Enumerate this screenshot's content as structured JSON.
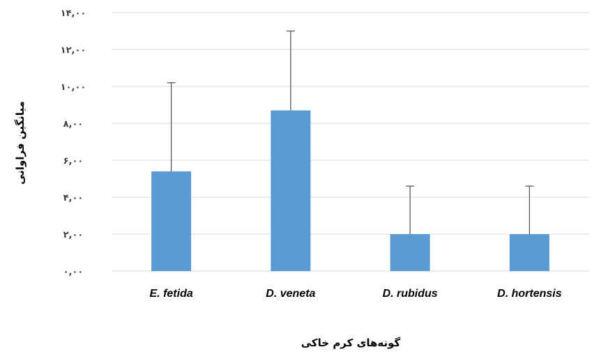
{
  "chart_data": {
    "type": "bar",
    "title": "",
    "xlabel": "گونه‌های کرم خاکی",
    "ylabel": "میانگین فراوانی",
    "categories": [
      "E. fetida",
      "D. veneta",
      "D. rubidus",
      "D. hortensis"
    ],
    "values": [
      5.4,
      8.7,
      2.0,
      2.0
    ],
    "error_upper": [
      10.2,
      13.0,
      4.6,
      4.6
    ],
    "ylim": [
      0,
      14
    ],
    "yticks": [
      0,
      2,
      4,
      6,
      8,
      10,
      12,
      14
    ],
    "ytick_labels": [
      "۰,۰۰",
      "۲,۰۰",
      "۴,۰۰",
      "۶,۰۰",
      "۸,۰۰",
      "۱۰,۰۰",
      "۱۲,۰۰",
      "۱۴,۰۰"
    ],
    "grid": true,
    "legend": "none",
    "bar_color": "#5B9BD5",
    "grid_color": "#D9D9D9",
    "error_bar_color": "#595959"
  }
}
